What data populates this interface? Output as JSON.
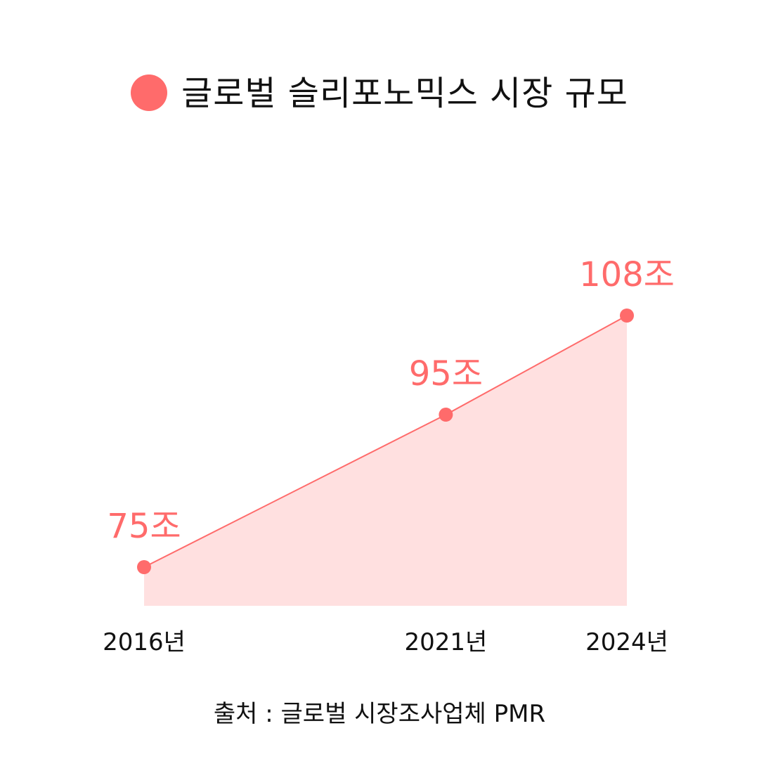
{
  "title": "글로벌 슬리포노믹스 시장 규모",
  "source": "출처 : 글로벌 시장조사업체 PMR",
  "colors": {
    "accent": "#ff6b6b",
    "area_fill": "#ffe0e0",
    "text": "#111111"
  },
  "chart_data": {
    "type": "area",
    "categories": [
      "2016년",
      "2021년",
      "2024년"
    ],
    "x": [
      2016,
      2021,
      2024
    ],
    "series": [
      {
        "values": [
          75,
          95,
          108
        ],
        "labels": [
          "75조",
          "95조",
          "108조"
        ]
      }
    ],
    "grid": false
  }
}
